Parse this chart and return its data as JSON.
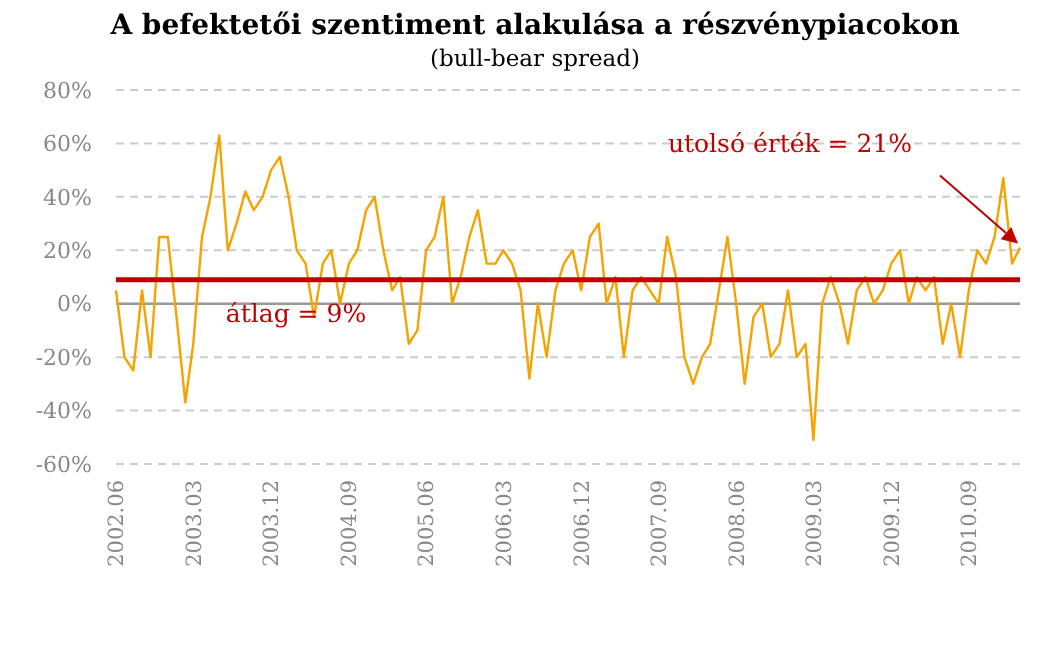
{
  "chart_data": {
    "type": "line",
    "title": "A befektetői szentiment alakulása a részvénypiacokon",
    "subtitle": "(bull-bear spread)",
    "x": [
      "2002-06",
      "2002-07",
      "2002-08",
      "2002-09",
      "2002-10",
      "2002-11",
      "2002-12",
      "2003-01",
      "2003-02",
      "2003-03",
      "2003-04",
      "2003-05",
      "2003-06",
      "2003-07",
      "2003-08",
      "2003-09",
      "2003-10",
      "2003-11",
      "2003-12",
      "2004-01",
      "2004-02",
      "2004-03",
      "2004-04",
      "2004-05",
      "2004-06",
      "2004-07",
      "2004-08",
      "2004-09",
      "2004-10",
      "2004-11",
      "2004-12",
      "2005-01",
      "2005-02",
      "2005-03",
      "2005-04",
      "2005-05",
      "2005-06",
      "2005-07",
      "2005-08",
      "2005-09",
      "2005-10",
      "2005-11",
      "2005-12",
      "2006-01",
      "2006-02",
      "2006-03",
      "2006-04",
      "2006-05",
      "2006-06",
      "2006-07",
      "2006-08",
      "2006-09",
      "2006-10",
      "2006-11",
      "2006-12",
      "2007-01",
      "2007-02",
      "2007-03",
      "2007-04",
      "2007-05",
      "2007-06",
      "2007-07",
      "2007-08",
      "2007-09",
      "2007-10",
      "2007-11",
      "2007-12",
      "2008-01",
      "2008-02",
      "2008-03",
      "2008-04",
      "2008-05",
      "2008-06",
      "2008-07",
      "2008-08",
      "2008-09",
      "2008-10",
      "2008-11",
      "2008-12",
      "2009-01",
      "2009-02",
      "2009-03",
      "2009-04",
      "2009-05",
      "2009-06",
      "2009-07",
      "2009-08",
      "2009-09",
      "2009-10",
      "2009-11",
      "2009-12",
      "2010-01",
      "2010-02",
      "2010-03",
      "2010-04",
      "2010-05",
      "2010-06",
      "2010-07",
      "2010-08",
      "2010-09",
      "2010-10",
      "2010-11",
      "2010-12",
      "2011-01",
      "2011-02",
      "2011-03"
    ],
    "series": [
      {
        "color": "#f5a300",
        "values": [
          5,
          -20,
          -25,
          5,
          -20,
          25,
          25,
          -5,
          -37,
          -15,
          25,
          40,
          63,
          20,
          30,
          42,
          35,
          40,
          50,
          55,
          40,
          20,
          15,
          -5,
          15,
          20,
          0,
          15,
          20,
          35,
          40,
          20,
          5,
          10,
          -15,
          -10,
          20,
          25,
          40,
          0,
          10,
          25,
          35,
          15,
          15,
          20,
          15,
          5,
          -28,
          0,
          -20,
          5,
          15,
          20,
          5,
          25,
          30,
          0,
          10,
          -20,
          5,
          10,
          5,
          0,
          25,
          10,
          -20,
          -30,
          -20,
          -15,
          5,
          25,
          0,
          -30,
          -5,
          0,
          -20,
          -15,
          5,
          -20,
          -15,
          -51,
          0,
          10,
          0,
          -15,
          5,
          10,
          0,
          5,
          15,
          20,
          0,
          10,
          5,
          10,
          -15,
          0,
          -20,
          5,
          20,
          15,
          25,
          47,
          15,
          21
        ]
      }
    ],
    "xlim": [
      "2002-06",
      "2011-03"
    ],
    "xticks": [
      {
        "value": "2002-06",
        "label": "2002.06"
      },
      {
        "value": "2003-03",
        "label": "2003.03"
      },
      {
        "value": "2003-12",
        "label": "2003.12"
      },
      {
        "value": "2004-09",
        "label": "2004.09"
      },
      {
        "value": "2005-06",
        "label": "2005.06"
      },
      {
        "value": "2006-03",
        "label": "2006.03"
      },
      {
        "value": "2006-12",
        "label": "2006.12"
      },
      {
        "value": "2007-09",
        "label": "2007.09"
      },
      {
        "value": "2008-06",
        "label": "2008.06"
      },
      {
        "value": "2009-03",
        "label": "2009.03"
      },
      {
        "value": "2009-12",
        "label": "2009.12"
      },
      {
        "value": "2010-09",
        "label": "2010.09"
      }
    ],
    "ylim": [
      -60,
      80
    ],
    "yticks": [
      {
        "value": -60,
        "label": "-60%"
      },
      {
        "value": -40,
        "label": "-40%"
      },
      {
        "value": -20,
        "label": "-20%"
      },
      {
        "value": 0,
        "label": "0%"
      },
      {
        "value": 20,
        "label": "20%"
      },
      {
        "value": 40,
        "label": "40%"
      },
      {
        "value": 60,
        "label": "60%"
      },
      {
        "value": 80,
        "label": "80%"
      }
    ],
    "grid": "y",
    "marker": "none",
    "line_style": "solid",
    "ref_lines": [
      {
        "axis": "y",
        "value": 9,
        "label": "átlag = 9%",
        "color": "#c00000"
      }
    ],
    "annotations": [
      "utolsó érték = 21%"
    ]
  }
}
